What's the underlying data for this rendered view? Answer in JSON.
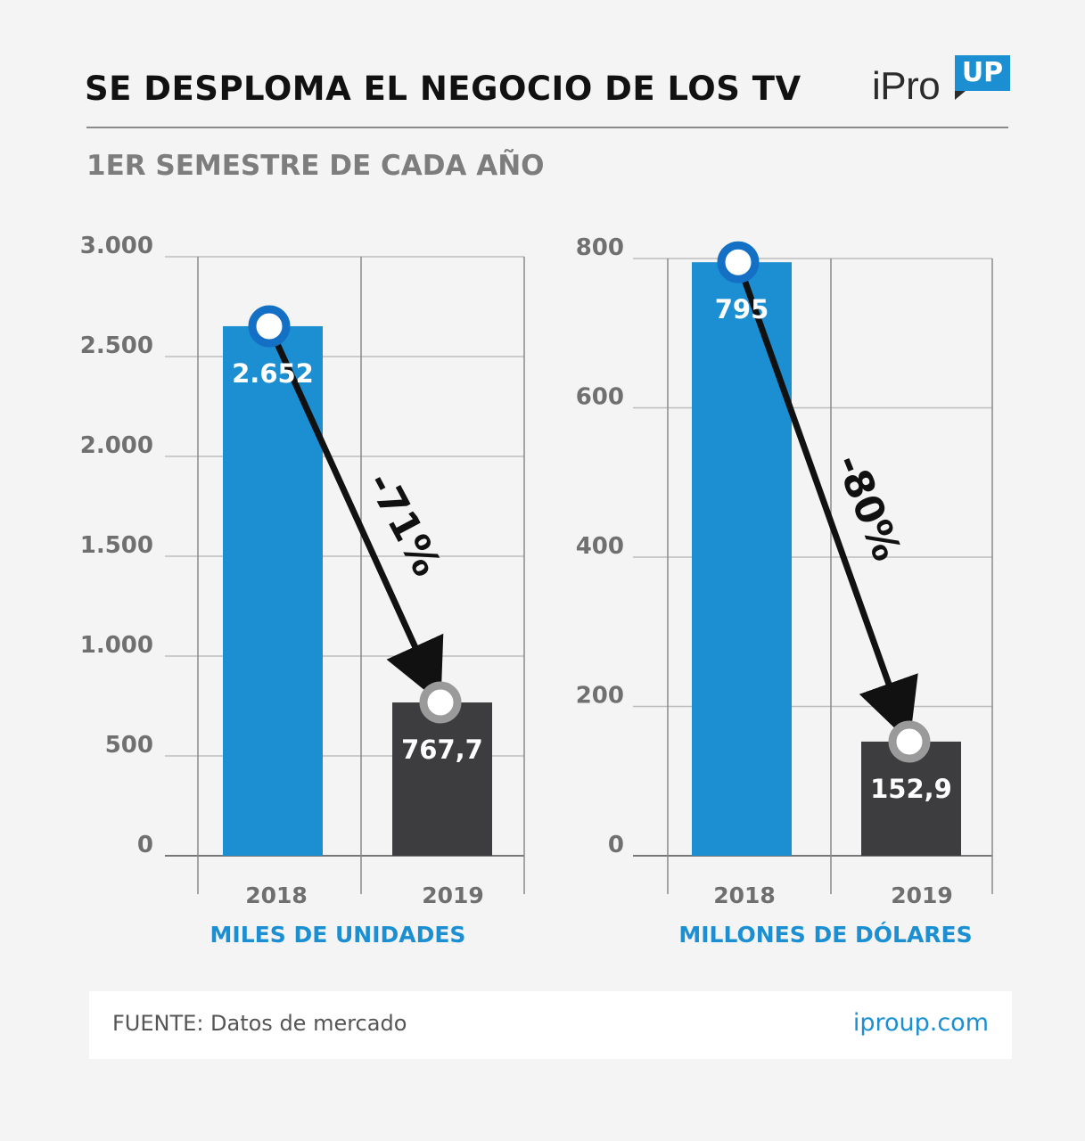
{
  "header": {
    "title": "SE DESPLOMA EL NEGOCIO DE LOS TV",
    "subtitle": "1ER SEMESTRE DE CADA AÑO",
    "logo_text": "iPro",
    "logo_badge": "UP"
  },
  "colors": {
    "bar_2018": "#1b8fd2",
    "bar_2019": "#3d3d3f",
    "caption": "#1b8fd2",
    "arrow": "#111111"
  },
  "footer": {
    "source": "FUENTE: Datos de mercado",
    "site": "iproup.com"
  },
  "chart_data": [
    {
      "type": "bar",
      "categories": [
        "2018",
        "2019"
      ],
      "values": [
        2652,
        767.7
      ],
      "value_labels": [
        "2.652",
        "767,7"
      ],
      "ylim": [
        0,
        3000
      ],
      "yticks": [
        0,
        500,
        1000,
        1500,
        2000,
        2500,
        3000
      ],
      "ytick_labels": [
        "0",
        "500",
        "1.000",
        "1.500",
        "2.000",
        "2.500",
        "3.000"
      ],
      "caption": "MILES DE UNIDADES",
      "change_label": "-71%",
      "grid": true
    },
    {
      "type": "bar",
      "categories": [
        "2018",
        "2019"
      ],
      "values": [
        795,
        152.9
      ],
      "value_labels": [
        "795",
        "152,9"
      ],
      "ylim": [
        0,
        800
      ],
      "yticks": [
        0,
        200,
        400,
        600,
        800
      ],
      "ytick_labels": [
        "0",
        "200",
        "400",
        "600",
        "800"
      ],
      "caption": "MILLONES DE DÓLARES",
      "change_label": "-80%",
      "grid": true
    }
  ]
}
